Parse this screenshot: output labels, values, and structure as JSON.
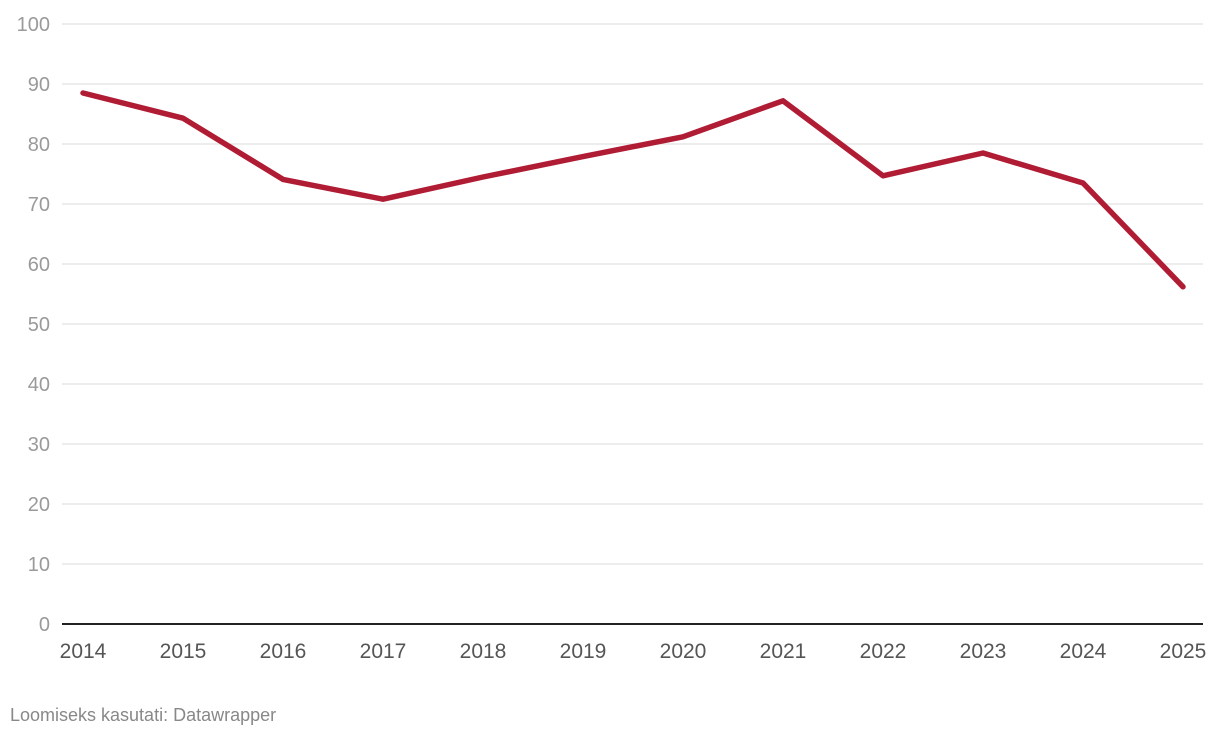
{
  "chart_data": {
    "type": "line",
    "title": "",
    "xlabel": "",
    "ylabel": "",
    "x": [
      "2014",
      "2015",
      "2016",
      "2017",
      "2018",
      "2019",
      "2020",
      "2021",
      "2022",
      "2023",
      "2024",
      "2025"
    ],
    "series": [
      {
        "name": "",
        "color": "#b01c33",
        "values": [
          88.5,
          84.3,
          74.1,
          70.8,
          74.5,
          77.9,
          81.2,
          87.2,
          74.7,
          78.5,
          73.5,
          56.2
        ]
      }
    ],
    "ylim": [
      0,
      100
    ],
    "yticks": [
      0,
      10,
      20,
      30,
      40,
      50,
      60,
      70,
      80,
      90,
      100
    ],
    "grid": true,
    "legend": "none"
  },
  "footer": {
    "credit": "Loomiseks kasutati: Datawrapper"
  }
}
